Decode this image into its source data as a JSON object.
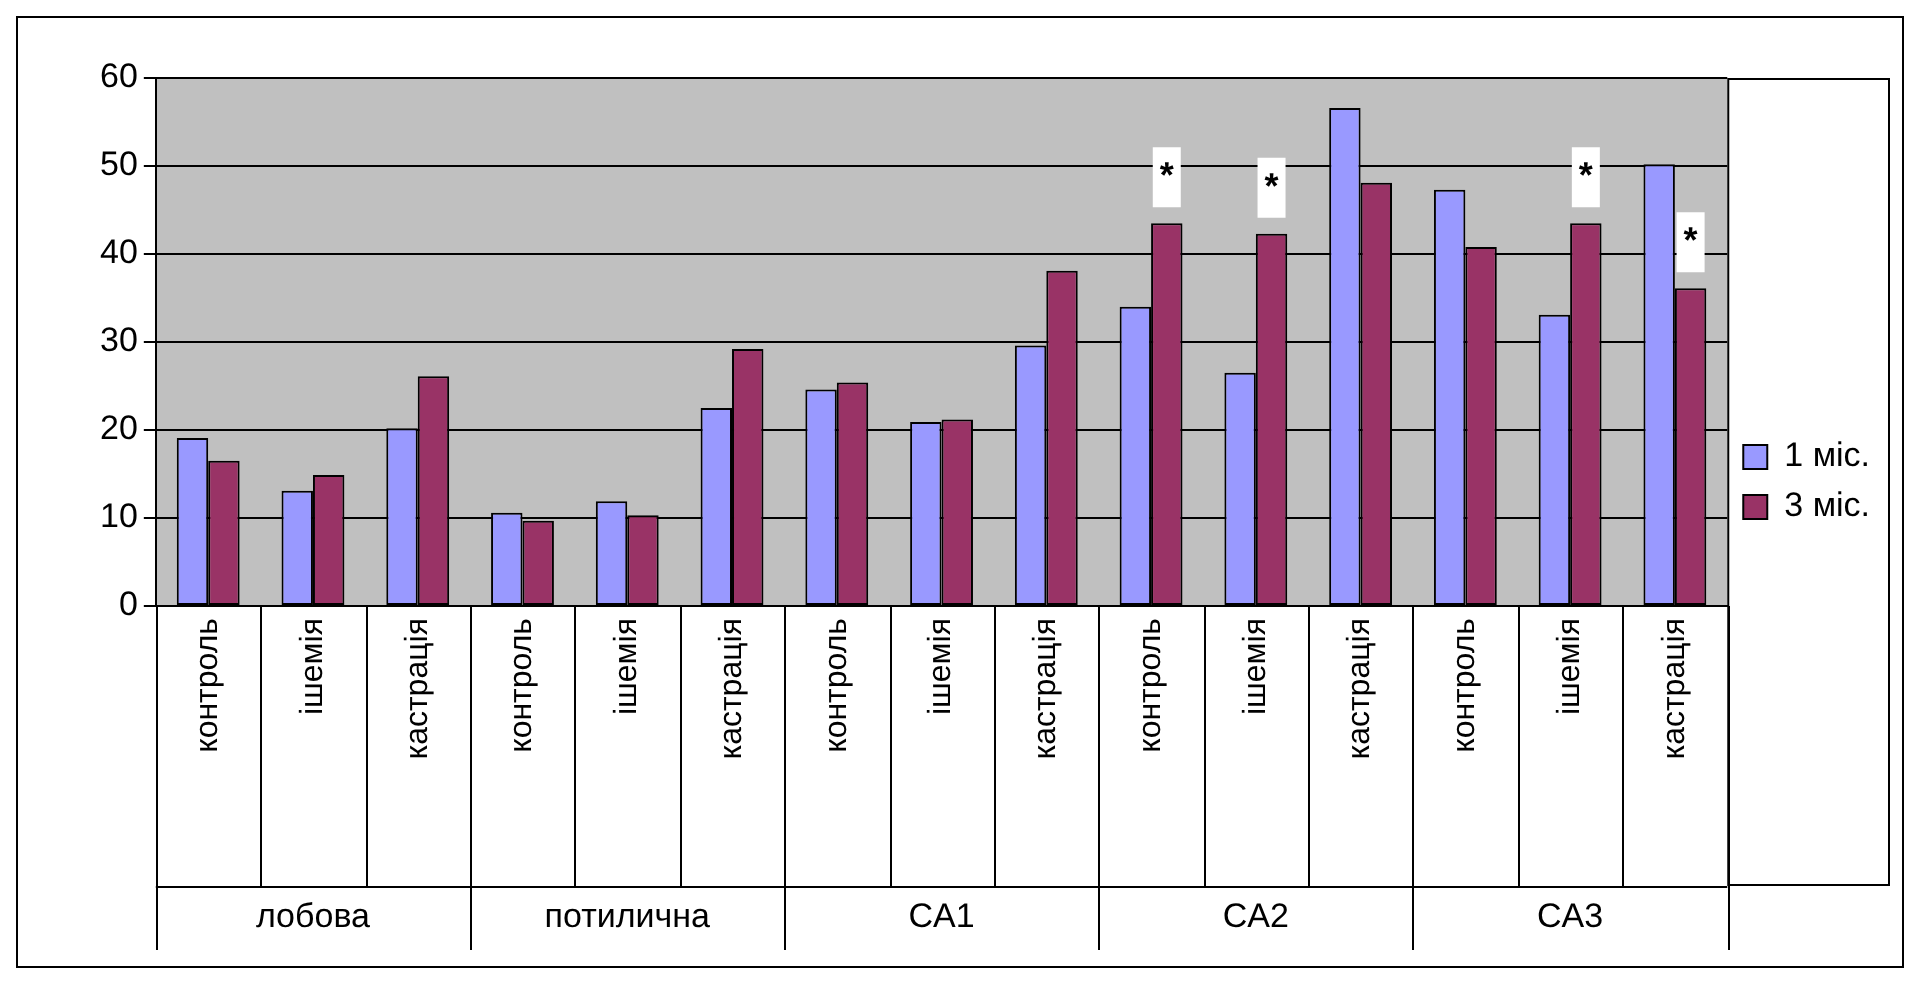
{
  "chart_data": {
    "type": "bar",
    "categories": [
      "контроль",
      "ішемія",
      "кастрація",
      "контроль",
      "ішемія",
      "кастрація",
      "контроль",
      "ішемія",
      "кастрація",
      "контроль",
      "ішемія",
      "кастрація",
      "контроль",
      "ішемія",
      "кастрація"
    ],
    "series": [
      {
        "name": "1 міс.",
        "color": "#9999ff",
        "values": [
          19.1,
          13.1,
          20.2,
          10.6,
          11.9,
          22.5,
          24.6,
          20.9,
          29.6,
          34.0,
          26.5,
          56.6,
          47.3,
          33.1,
          50.2
        ]
      },
      {
        "name": "3 міс.",
        "color": "#993366",
        "values": [
          16.5,
          14.9,
          26.1,
          9.7,
          10.3,
          29.2,
          25.4,
          21.2,
          38.1,
          43.5,
          42.3,
          48.1,
          40.8,
          43.5,
          36.1
        ],
        "value_labels": [
          null,
          null,
          null,
          null,
          null,
          null,
          null,
          null,
          null,
          "*",
          "*",
          null,
          null,
          "*",
          "*"
        ]
      }
    ],
    "annotations": [
      "лобова",
      "потилична",
      "CA1",
      "CA2",
      "CA3"
    ],
    "ylim": [
      0,
      60
    ],
    "yticks": [
      0,
      10,
      20,
      30,
      40,
      50,
      60
    ],
    "grid": "y",
    "legend": "right"
  }
}
